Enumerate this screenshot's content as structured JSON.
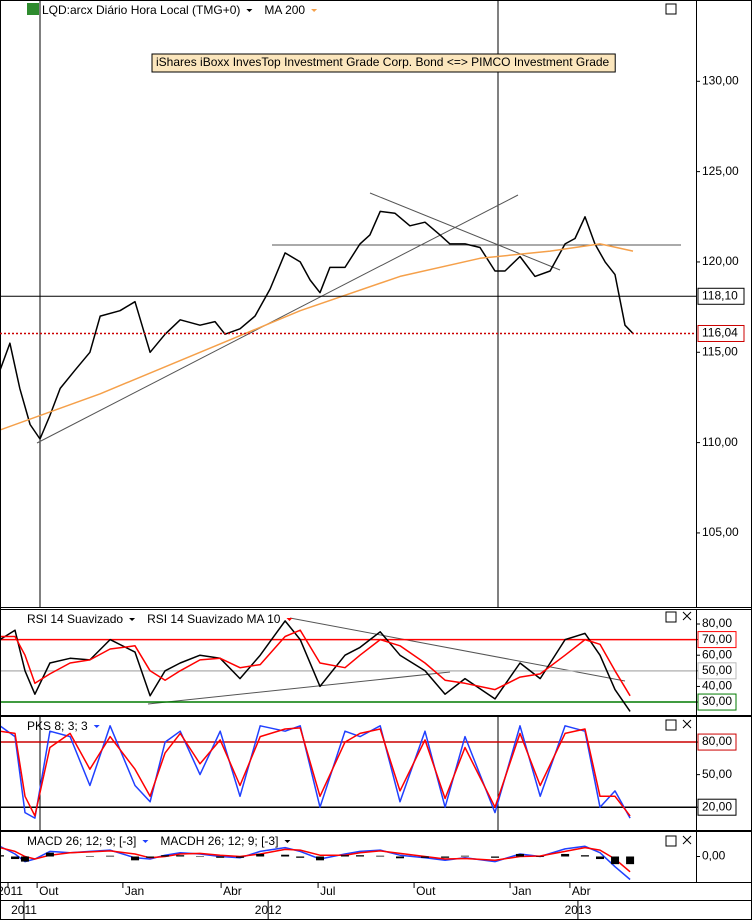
{
  "chart_data": [
    {
      "type": "line",
      "annotation": "iShares iBoxx InvesTop Investment Grade Corp. Bond  <=> PIMCO Investment Grade",
      "series": [
        {
          "name": "LQD:arcx Diário Hora Local (TMG+0)",
          "color": "#000000",
          "x": [
            -1.16,
            -0.85,
            -0.54,
            -0.22,
            0.09,
            0.4,
            0.72,
            1.18,
            1.65,
            1.97,
            2.59,
            3.06,
            3.53,
            4.0,
            4.47,
            5.09,
            5.56,
            5.87,
            6.34,
            6.81,
            7.28,
            7.75,
            8.22,
            8.53,
            8.84,
            9.15,
            9.62,
            10.09,
            10.4,
            10.72,
            11.18,
            11.65,
            12.12,
            12.59,
            12.9,
            13.37,
            13.84,
            14.31,
            14.62,
            15.09,
            15.56,
            16.03,
            16.5,
            16.81,
            17.12,
            17.43,
            17.75,
            18.06,
            18.37,
            18.62
          ],
          "values": [
            114,
            115.5,
            113,
            111,
            110.2,
            111.5,
            113,
            114,
            115,
            117,
            117.3,
            117.8,
            115,
            116,
            116.8,
            116.5,
            116.7,
            116,
            116.3,
            117,
            118.5,
            120.5,
            120,
            119,
            118.3,
            119.7,
            119.7,
            121,
            121.5,
            122.8,
            122.7,
            122,
            122.2,
            121.5,
            121,
            121,
            120.8,
            119.5,
            119.5,
            120.3,
            119.2,
            119.5,
            121,
            121.3,
            122.5,
            121,
            120,
            119.3,
            116.5,
            116.04
          ]
        },
        {
          "name": "MA 200",
          "color": "#f5a04a",
          "x": [
            -1.16,
            1.97,
            5.09,
            8.22,
            11.34,
            13.84,
            16.03,
            17.59,
            18.62
          ],
          "values": [
            110.7,
            112.7,
            115,
            117.3,
            119.2,
            120.2,
            120.6,
            121,
            120.6
          ]
        }
      ],
      "levels": [
        {
          "value": 118.1,
          "label": "118,10",
          "color": "#000000"
        },
        {
          "value": 116.04,
          "label": "116,04",
          "color": "#cc0000"
        }
      ],
      "xlim": [
        -1.16,
        20.59
      ],
      "xticks": [
        {
          "value": -0.91,
          "label": "2011"
        },
        {
          "value": 0,
          "label": "Out"
        },
        {
          "value": 2.68,
          "label": "Jan"
        },
        {
          "value": 5.75,
          "label": "Abr"
        },
        {
          "value": 8.78,
          "label": "Jul"
        },
        {
          "value": 11.78,
          "label": "Out"
        },
        {
          "value": 14.78,
          "label": "Jan"
        },
        {
          "value": 16.65,
          "label": "Abr"
        }
      ],
      "year_ticks": [
        {
          "value": -0.41,
          "label": "2011"
        },
        {
          "value": 7.22,
          "label": "2012"
        },
        {
          "value": 16.9,
          "label": "2013"
        }
      ],
      "ylim": [
        100.9,
        134.5
      ],
      "yticks": [
        {
          "value": 130,
          "label": "130,00"
        },
        {
          "value": 125,
          "label": "125,00"
        },
        {
          "value": 120,
          "label": "120,00"
        },
        {
          "value": 115,
          "label": "115,00"
        },
        {
          "value": 110,
          "label": "110,00"
        },
        {
          "value": 105,
          "label": "105,00"
        }
      ]
    },
    {
      "type": "line",
      "x": [
        -1.16,
        -0.69,
        -0.38,
        -0.07,
        0.4,
        1.03,
        1.65,
        2.28,
        3.06,
        3.53,
        4.0,
        4.47,
        5.09,
        5.72,
        6.34,
        6.97,
        7.75,
        8.22,
        8.84,
        9.62,
        10.09,
        10.72,
        11.34,
        12.12,
        12.75,
        13.37,
        14.31,
        15.09,
        15.72,
        16.5,
        17.12,
        17.59,
        18.06,
        18.53
      ],
      "series": [
        {
          "name": "RSI 14 Suavizado",
          "color": "#000000",
          "values": [
            70,
            76,
            50,
            35,
            55,
            58,
            57,
            70,
            62,
            34,
            50,
            55,
            60,
            58,
            45,
            60,
            82,
            70,
            40,
            60,
            65,
            75,
            60,
            50,
            35,
            45,
            32,
            55,
            45,
            70,
            74,
            60,
            38,
            24
          ]
        },
        {
          "name": "RSI 14 Suavizado MA 10",
          "color": "#ff0000",
          "values": [
            72,
            72,
            60,
            42,
            48,
            55,
            57,
            64,
            66,
            50,
            44,
            50,
            57,
            58,
            52,
            54,
            72,
            76,
            55,
            52,
            60,
            70,
            66,
            55,
            44,
            42,
            38,
            46,
            48,
            60,
            70,
            67,
            50,
            34
          ]
        }
      ],
      "hlines": [
        {
          "value": 70,
          "color": "#ff0000"
        },
        {
          "value": 50,
          "color": "#bbbbbb"
        },
        {
          "value": 30,
          "color": "#007a00"
        }
      ],
      "ylim": [
        21.7,
        89.6
      ],
      "yticks": [
        {
          "value": 80,
          "label": "80,00"
        },
        {
          "value": 70,
          "label": "70,00"
        },
        {
          "value": 60,
          "label": "60,00"
        },
        {
          "value": 50,
          "label": "50,00"
        },
        {
          "value": 40,
          "label": "40,00"
        },
        {
          "value": 30,
          "label": "30,00"
        }
      ]
    },
    {
      "type": "line",
      "x": [
        -1.16,
        -0.69,
        -0.38,
        -0.07,
        0.4,
        1.03,
        1.65,
        2.28,
        3.06,
        3.53,
        4.0,
        4.47,
        5.09,
        5.72,
        6.34,
        6.97,
        7.75,
        8.22,
        8.84,
        9.62,
        10.09,
        10.72,
        11.34,
        12.12,
        12.75,
        13.37,
        14.31,
        15.09,
        15.72,
        16.5,
        17.12,
        17.59,
        18.06,
        18.53
      ],
      "series": [
        {
          "name": "PKS 8; 3; 3",
          "color": "#2040ff",
          "values": [
            95,
            85,
            15,
            10,
            90,
            85,
            40,
            95,
            40,
            25,
            80,
            90,
            50,
            90,
            30,
            95,
            90,
            95,
            20,
            90,
            85,
            95,
            25,
            90,
            20,
            85,
            15,
            95,
            30,
            95,
            90,
            20,
            35,
            10
          ]
        },
        {
          "color": "#ff0000",
          "values": [
            90,
            88,
            30,
            12,
            75,
            88,
            55,
            85,
            55,
            30,
            70,
            88,
            60,
            82,
            40,
            85,
            92,
            93,
            30,
            80,
            88,
            92,
            35,
            82,
            28,
            75,
            20,
            88,
            40,
            88,
            92,
            30,
            30,
            12
          ]
        }
      ],
      "hlines": [
        {
          "value": 80,
          "color": "#cc0000"
        },
        {
          "value": 20,
          "color": "#000000"
        }
      ],
      "ylim": [
        -1,
        104
      ],
      "yticks": [
        {
          "value": 80,
          "label": "80,00"
        },
        {
          "value": 50,
          "label": "50,00"
        },
        {
          "value": 20,
          "label": "20,00"
        }
      ]
    },
    {
      "type": "line",
      "x": [
        -1.16,
        -0.69,
        -0.38,
        -0.07,
        0.4,
        1.03,
        1.65,
        2.28,
        3.06,
        3.53,
        4.0,
        4.47,
        5.09,
        5.72,
        6.34,
        6.97,
        7.75,
        8.22,
        8.84,
        9.62,
        10.09,
        10.72,
        11.34,
        12.12,
        12.75,
        13.37,
        14.31,
        15.09,
        15.72,
        16.5,
        17.12,
        17.59,
        18.06,
        18.53
      ],
      "series": [
        {
          "name": "MACD 26; 12; 9; [-3]",
          "color": "#2040ff",
          "values": [
            0.4,
            0.1,
            -0.2,
            -0.1,
            0.2,
            0.15,
            0.2,
            0.25,
            -0.05,
            -0.1,
            0.05,
            0.15,
            0.1,
            0,
            -0.05,
            0.2,
            0.35,
            0.2,
            -0.1,
            0.1,
            0.2,
            0.25,
            0.05,
            -0.05,
            -0.15,
            -0.05,
            -0.2,
            0.1,
            0,
            0.3,
            0.4,
            0.15,
            -0.4,
            -0.9
          ]
        },
        {
          "color": "#ff0000",
          "values": [
            0.35,
            0.2,
            0,
            -0.1,
            0.05,
            0.15,
            0.18,
            0.22,
            0.1,
            -0.05,
            0,
            0.1,
            0.12,
            0.05,
            0,
            0.1,
            0.28,
            0.25,
            0.05,
            0.05,
            0.15,
            0.22,
            0.12,
            0,
            -0.1,
            -0.08,
            -0.15,
            0,
            0.02,
            0.2,
            0.35,
            0.25,
            -0.1,
            -0.6
          ]
        },
        {
          "name": "MACDH 26; 12; 9; [-3]",
          "color": "#000000",
          "type": "hist",
          "values": [
            0.05,
            -0.1,
            -0.2,
            0,
            0.15,
            0,
            0.02,
            0.03,
            -0.15,
            -0.05,
            0.05,
            0.05,
            -0.02,
            -0.05,
            -0.05,
            0.1,
            0.07,
            -0.05,
            -0.15,
            0.05,
            0.05,
            0.03,
            -0.07,
            -0.05,
            -0.05,
            0.03,
            -0.05,
            0.1,
            -0.02,
            0.1,
            0.05,
            -0.1,
            -0.3,
            -0.3
          ]
        }
      ],
      "ylim": [
        -1,
        1
      ],
      "yticks": [
        {
          "value": 0,
          "label": "0,00"
        }
      ]
    }
  ]
}
